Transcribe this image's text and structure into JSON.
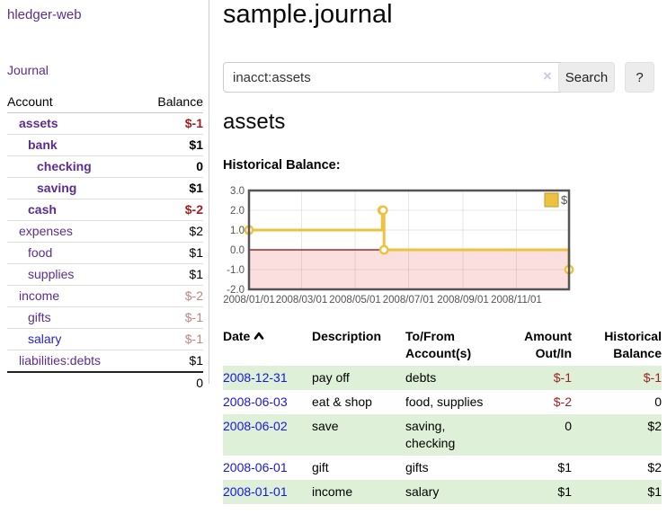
{
  "sidebar": {
    "app_title": "hledger-web",
    "journal_link": "Journal",
    "headers": {
      "account": "Account",
      "balance": "Balance"
    },
    "accounts": [
      {
        "label": "assets",
        "balance": "$-1"
      },
      {
        "label": "bank",
        "balance": "$1"
      },
      {
        "label": "checking",
        "balance": "0"
      },
      {
        "label": "saving",
        "balance": "$1"
      },
      {
        "label": "cash",
        "balance": "$-2"
      },
      {
        "label": "expenses",
        "balance": "$2"
      },
      {
        "label": "food",
        "balance": "$1"
      },
      {
        "label": "supplies",
        "balance": "$1"
      },
      {
        "label": "income",
        "balance": "$-2"
      },
      {
        "label": "gifts",
        "balance": "$-1"
      },
      {
        "label": "salary",
        "balance": "$-1"
      },
      {
        "label": "liabilities:debts",
        "balance": "$1"
      }
    ],
    "total": "0"
  },
  "main": {
    "page_title": "sample.journal",
    "search": {
      "value": "inacct:assets",
      "clear": "×",
      "button": "Search",
      "help": "?"
    },
    "account_heading": "assets",
    "chart_heading": "Historical Balance:"
  },
  "chart_data": {
    "type": "line",
    "step": true,
    "title": "Historical Balance:",
    "ylim": [
      -2,
      3
    ],
    "xmax_day": 365,
    "grid": true,
    "legend_position": "top-right",
    "zero_line_color": "#8b0000",
    "negative_region_color": "#fbdfdf",
    "border_color": "#545454",
    "series": [
      {
        "name": "$",
        "color": "#edc240",
        "points": [
          {
            "date": "2008-01-01",
            "day": 0,
            "value": 1
          },
          {
            "date": "2008-06-01",
            "day": 152,
            "value": 2
          },
          {
            "date": "2008-06-02",
            "day": 153,
            "value": 2
          },
          {
            "date": "2008-06-03",
            "day": 154,
            "value": 0
          },
          {
            "date": "2008-12-31",
            "day": 365,
            "value": -1
          }
        ]
      }
    ],
    "yticks": [
      {
        "label": "3.0",
        "value": 3
      },
      {
        "label": "2.0",
        "value": 2
      },
      {
        "label": "1.0",
        "value": 1
      },
      {
        "label": "0.0",
        "value": 0
      },
      {
        "label": "-1.0",
        "value": -1
      },
      {
        "label": "-2.0",
        "value": -2
      }
    ],
    "xticks": [
      {
        "label": "2008/01/01",
        "day": 0
      },
      {
        "label": "2008/03/01",
        "day": 60
      },
      {
        "label": "2008/05/01",
        "day": 121
      },
      {
        "label": "2008/07/01",
        "day": 182
      },
      {
        "label": "2008/09/01",
        "day": 244
      },
      {
        "label": "2008/11/01",
        "day": 305
      }
    ]
  },
  "register": {
    "headers": {
      "date": "Date",
      "description": "Description",
      "accounts": "To/From Account(s)",
      "amount": "Amount Out/In",
      "balance": "Historical Balance"
    },
    "rows": [
      {
        "date": "2008-12-31",
        "description": "pay off",
        "accounts": "debts",
        "amount": "$-1",
        "balance": "$-1"
      },
      {
        "date": "2008-06-03",
        "description": "eat & shop",
        "accounts": "food, supplies",
        "amount": "$-2",
        "balance": "0"
      },
      {
        "date": "2008-06-02",
        "description": "save",
        "accounts": "saving, checking",
        "amount": "0",
        "balance": "$2"
      },
      {
        "date": "2008-06-01",
        "description": "gift",
        "accounts": "gifts",
        "amount": "$1",
        "balance": "$2"
      },
      {
        "date": "2008-01-01",
        "description": "income",
        "accounts": "salary",
        "amount": "$1",
        "balance": "$1"
      }
    ]
  }
}
